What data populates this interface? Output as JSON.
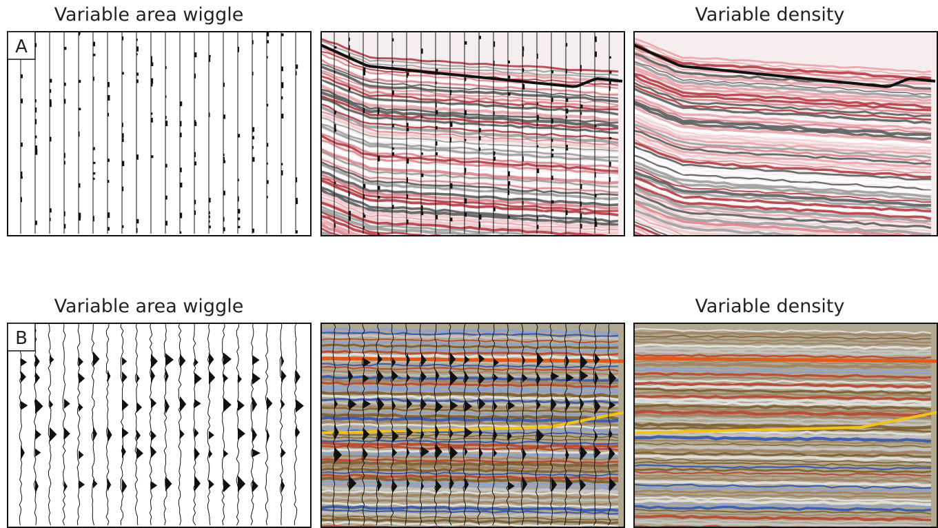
{
  "rows": [
    {
      "label": "A",
      "left_title": "Variable area wiggle",
      "right_title": "Variable density"
    },
    {
      "label": "B",
      "left_title": "Variable area wiggle",
      "right_title": "Variable density"
    }
  ]
}
